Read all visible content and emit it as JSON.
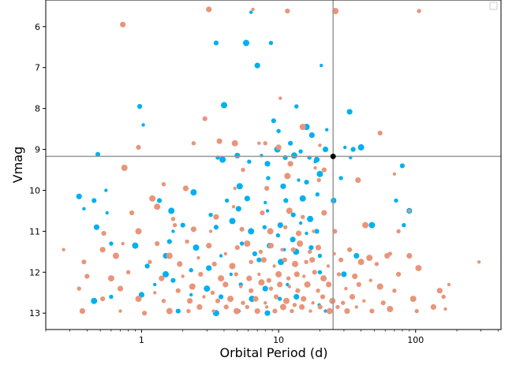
{
  "chart_data": {
    "type": "scatter",
    "xlabel": "Orbital Period (d)",
    "ylabel": "Vmag",
    "x_scale": "log",
    "xlim": [
      0.2,
      420
    ],
    "ylim": [
      13.4,
      5.35
    ],
    "y_inverted": true,
    "x_ticks": [
      1,
      10,
      100
    ],
    "x_tick_labels": [
      "1",
      "10",
      "100"
    ],
    "y_ticks": [
      6,
      7,
      8,
      9,
      10,
      11,
      12,
      13
    ],
    "y_tick_labels": [
      "6",
      "7",
      "8",
      "9",
      "10",
      "11",
      "12",
      "13"
    ],
    "legend": {
      "position": "top-right",
      "entries": []
    },
    "crosshair": {
      "x": 25,
      "y": 9.17
    },
    "highlight_point": {
      "x": 25,
      "y": 9.17,
      "color": "#000000"
    },
    "colors": {
      "salmon": "#e8957a",
      "blue": "#00b0f0",
      "crosshair": "#999999"
    },
    "series": [
      {
        "color": "#00b0f0",
        "points": [
          [
            6.3,
            5.65
          ],
          [
            3.5,
            6.4
          ],
          [
            5.8,
            6.4
          ],
          [
            8.8,
            6.4
          ],
          [
            7.0,
            6.95
          ],
          [
            20.5,
            6.95
          ],
          [
            0.97,
            7.95
          ],
          [
            4.0,
            7.92
          ],
          [
            13.5,
            7.95
          ],
          [
            33,
            8.08
          ],
          [
            1.03,
            8.4
          ],
          [
            9.2,
            8.3
          ],
          [
            16,
            8.45
          ],
          [
            10,
            8.55
          ],
          [
            17.5,
            8.65
          ],
          [
            22.5,
            8.52
          ],
          [
            12.2,
            8.85
          ],
          [
            9.8,
            9.0
          ],
          [
            14.5,
            9.05
          ],
          [
            22,
            9.0
          ],
          [
            30.5,
            8.95
          ],
          [
            35,
            9.0
          ],
          [
            40,
            8.95
          ],
          [
            3.6,
            9.2
          ],
          [
            5.0,
            9.15
          ],
          [
            7.5,
            9.15
          ],
          [
            11.2,
            9.2
          ],
          [
            13,
            9.15
          ],
          [
            16.8,
            9.2
          ],
          [
            19,
            9.25
          ],
          [
            33.5,
            9.2
          ],
          [
            0.48,
            9.12
          ],
          [
            3.9,
            9.25
          ],
          [
            6.1,
            9.3
          ],
          [
            8.3,
            9.35
          ],
          [
            18.5,
            9.3
          ],
          [
            80,
            9.4
          ],
          [
            5.2,
            9.9
          ],
          [
            8.4,
            9.7
          ],
          [
            10.8,
            9.9
          ],
          [
            14,
            9.75
          ],
          [
            16,
            9.8
          ],
          [
            20,
            9.6
          ],
          [
            28.5,
            9.7
          ],
          [
            0.35,
            10.15
          ],
          [
            0.55,
            10.0
          ],
          [
            1.35,
            10.25
          ],
          [
            2.4,
            10.05
          ],
          [
            4.2,
            10.25
          ],
          [
            5.9,
            10.2
          ],
          [
            8.0,
            10.3
          ],
          [
            11.3,
            10.25
          ],
          [
            15,
            10.2
          ],
          [
            19.2,
            10.1
          ],
          [
            25.2,
            10.25
          ],
          [
            0.38,
            10.45
          ],
          [
            0.45,
            10.25
          ],
          [
            1.65,
            10.5
          ],
          [
            3.2,
            10.6
          ],
          [
            5.1,
            10.45
          ],
          [
            8.3,
            10.5
          ],
          [
            12.8,
            10.6
          ],
          [
            17,
            10.7
          ],
          [
            72,
            10.25
          ],
          [
            90,
            10.5
          ],
          [
            0.56,
            10.55
          ],
          [
            2.0,
            10.85
          ],
          [
            4.6,
            10.75
          ],
          [
            7.9,
            10.9
          ],
          [
            10.3,
            10.85
          ],
          [
            14.5,
            10.8
          ],
          [
            19,
            11.0
          ],
          [
            48,
            10.85
          ],
          [
            82,
            10.85
          ],
          [
            0.47,
            10.9
          ],
          [
            1.7,
            11.0
          ],
          [
            3.5,
            10.9
          ],
          [
            6.3,
            11.0
          ],
          [
            9.9,
            11.1
          ],
          [
            12.7,
            11.2
          ],
          [
            16,
            11.05
          ],
          [
            1.6,
            11.25
          ],
          [
            2.5,
            11.4
          ],
          [
            5.4,
            11.3
          ],
          [
            8.6,
            11.35
          ],
          [
            11.0,
            11.45
          ],
          [
            17.3,
            11.4
          ],
          [
            0.9,
            11.35
          ],
          [
            0.6,
            11.3
          ],
          [
            1.5,
            11.6
          ],
          [
            3.8,
            11.6
          ],
          [
            6.7,
            11.55
          ],
          [
            13.4,
            11.5
          ],
          [
            20,
            11.6
          ],
          [
            37,
            11.6
          ],
          [
            0.8,
            12.0
          ],
          [
            1.1,
            11.85
          ],
          [
            1.5,
            12.05
          ],
          [
            2.3,
            11.95
          ],
          [
            3.1,
            11.9
          ],
          [
            4.5,
            12.05
          ],
          [
            7.2,
            11.7
          ],
          [
            10.4,
            11.75
          ],
          [
            20,
            12.0
          ],
          [
            30,
            12.05
          ],
          [
            1.25,
            12.3
          ],
          [
            1.7,
            12.2
          ],
          [
            3.0,
            12.4
          ],
          [
            5.3,
            12.3
          ],
          [
            8.0,
            12.4
          ],
          [
            11.6,
            12.3
          ],
          [
            16.4,
            12.3
          ],
          [
            0.45,
            12.7
          ],
          [
            0.6,
            12.6
          ],
          [
            1.0,
            12.55
          ],
          [
            2.3,
            12.55
          ],
          [
            3.8,
            12.6
          ],
          [
            6.4,
            12.65
          ],
          [
            10.2,
            12.65
          ],
          [
            13.5,
            12.6
          ],
          [
            19.8,
            12.8
          ],
          [
            1.85,
            12.95
          ],
          [
            3.5,
            13.0
          ],
          [
            5.1,
            12.95
          ],
          [
            8.3,
            13.0
          ],
          [
            22,
            12.95
          ]
        ]
      },
      {
        "color": "#e8957a",
        "points": [
          [
            3.1,
            5.58
          ],
          [
            6.5,
            5.58
          ],
          [
            11.6,
            5.62
          ],
          [
            26,
            5.62
          ],
          [
            106,
            5.62
          ],
          [
            0.73,
            5.95
          ],
          [
            10.3,
            7.75
          ],
          [
            2.9,
            8.25
          ],
          [
            15,
            8.45
          ],
          [
            2.4,
            8.85
          ],
          [
            3.7,
            8.8
          ],
          [
            7.2,
            8.85
          ],
          [
            0.95,
            8.95
          ],
          [
            4.8,
            8.85
          ],
          [
            8.0,
            8.85
          ],
          [
            10,
            8.95
          ],
          [
            20,
            8.9
          ],
          [
            55,
            8.6
          ],
          [
            0.75,
            9.45
          ],
          [
            5.5,
            9.5
          ],
          [
            12.2,
            9.35
          ],
          [
            18.5,
            9.45
          ],
          [
            21.5,
            9.5
          ],
          [
            1.2,
            10.2
          ],
          [
            1.45,
            9.85
          ],
          [
            2.1,
            9.95
          ],
          [
            4.8,
            9.95
          ],
          [
            8.2,
            9.95
          ],
          [
            11.6,
            9.65
          ],
          [
            19.7,
            9.75
          ],
          [
            38,
            9.75
          ],
          [
            70,
            9.6
          ],
          [
            0.85,
            10.55
          ],
          [
            1.3,
            10.4
          ],
          [
            1.7,
            10.7
          ],
          [
            3.5,
            10.65
          ],
          [
            4.7,
            10.4
          ],
          [
            7.6,
            10.55
          ],
          [
            12.0,
            10.5
          ],
          [
            15,
            10.65
          ],
          [
            21.5,
            10.55
          ],
          [
            90,
            10.5
          ],
          [
            0.53,
            11.05
          ],
          [
            0.95,
            11.0
          ],
          [
            1.75,
            10.85
          ],
          [
            2.4,
            10.95
          ],
          [
            3.2,
            11.0
          ],
          [
            5.4,
            10.95
          ],
          [
            8.7,
            11.0
          ],
          [
            11.2,
            10.9
          ],
          [
            14,
            11.05
          ],
          [
            18,
            11.0
          ],
          [
            25.7,
            11.0
          ],
          [
            43,
            10.85
          ],
          [
            75,
            11.0
          ],
          [
            0.52,
            11.45
          ],
          [
            0.73,
            11.3
          ],
          [
            1.3,
            11.3
          ],
          [
            1.6,
            11.6
          ],
          [
            2.15,
            11.25
          ],
          [
            3.1,
            11.35
          ],
          [
            4.1,
            11.55
          ],
          [
            5.0,
            11.4
          ],
          [
            5.9,
            11.3
          ],
          [
            7.4,
            11.5
          ],
          [
            8.8,
            11.35
          ],
          [
            10.6,
            11.45
          ],
          [
            12.8,
            11.45
          ],
          [
            14.3,
            11.3
          ],
          [
            16.9,
            11.5
          ],
          [
            19.5,
            11.4
          ],
          [
            25.5,
            11.55
          ],
          [
            33,
            11.45
          ],
          [
            46,
            11.65
          ],
          [
            65,
            11.55
          ],
          [
            90,
            11.6
          ],
          [
            0.27,
            11.45
          ],
          [
            0.38,
            11.75
          ],
          [
            0.65,
            11.6
          ],
          [
            1.15,
            11.75
          ],
          [
            1.9,
            11.8
          ],
          [
            2.6,
            11.65
          ],
          [
            3.4,
            11.8
          ],
          [
            4.6,
            11.85
          ],
          [
            6.3,
            11.75
          ],
          [
            7.8,
            11.7
          ],
          [
            9.3,
            11.85
          ],
          [
            11.1,
            11.7
          ],
          [
            13.2,
            11.8
          ],
          [
            15.9,
            11.75
          ],
          [
            17.6,
            11.7
          ],
          [
            23,
            11.85
          ],
          [
            28.5,
            11.7
          ],
          [
            40,
            11.75
          ],
          [
            52,
            11.8
          ],
          [
            62,
            11.6
          ],
          [
            290,
            11.75
          ],
          [
            0.4,
            12.1
          ],
          [
            0.6,
            12.15
          ],
          [
            0.8,
            12.0
          ],
          [
            1.4,
            12.15
          ],
          [
            2.0,
            12.1
          ],
          [
            2.7,
            12.05
          ],
          [
            3.8,
            12.15
          ],
          [
            4.9,
            12.05
          ],
          [
            6.1,
            12.15
          ],
          [
            7.2,
            12.05
          ],
          [
            8.5,
            12.2
          ],
          [
            10.0,
            12.05
          ],
          [
            11.8,
            12.15
          ],
          [
            13.6,
            12.05
          ],
          [
            15.3,
            12.1
          ],
          [
            18.3,
            12.0
          ],
          [
            21.3,
            12.15
          ],
          [
            27.5,
            12.05
          ],
          [
            36,
            12.1
          ],
          [
            47,
            12.2
          ],
          [
            75,
            12.05
          ],
          [
            105,
            11.9
          ],
          [
            0.35,
            12.4
          ],
          [
            0.7,
            12.4
          ],
          [
            1.25,
            12.5
          ],
          [
            1.85,
            12.45
          ],
          [
            2.35,
            12.35
          ],
          [
            3.3,
            12.5
          ],
          [
            4.1,
            12.3
          ],
          [
            5.3,
            12.35
          ],
          [
            6.3,
            12.45
          ],
          [
            7.5,
            12.25
          ],
          [
            8.8,
            12.4
          ],
          [
            10.2,
            12.3
          ],
          [
            12.0,
            12.35
          ],
          [
            13.8,
            12.45
          ],
          [
            16.2,
            12.3
          ],
          [
            19.4,
            12.45
          ],
          [
            23.2,
            12.3
          ],
          [
            31,
            12.4
          ],
          [
            38.5,
            12.3
          ],
          [
            55,
            12.35
          ],
          [
            70,
            12.45
          ],
          [
            150,
            12.45
          ],
          [
            175,
            12.3
          ],
          [
            0.52,
            12.65
          ],
          [
            0.95,
            12.65
          ],
          [
            1.45,
            12.7
          ],
          [
            2.25,
            12.7
          ],
          [
            2.85,
            12.6
          ],
          [
            3.6,
            12.7
          ],
          [
            4.45,
            12.65
          ],
          [
            5.5,
            12.75
          ],
          [
            6.8,
            12.65
          ],
          [
            8.0,
            12.75
          ],
          [
            9.6,
            12.6
          ],
          [
            11.4,
            12.7
          ],
          [
            13.1,
            12.8
          ],
          [
            15.2,
            12.65
          ],
          [
            17.8,
            12.75
          ],
          [
            21.0,
            12.6
          ],
          [
            24.7,
            12.7
          ],
          [
            29.5,
            12.75
          ],
          [
            34.5,
            12.6
          ],
          [
            42,
            12.7
          ],
          [
            58,
            12.75
          ],
          [
            96,
            12.65
          ],
          [
            160,
            12.6
          ],
          [
            0.37,
            12.95
          ],
          [
            0.7,
            12.95
          ],
          [
            1.05,
            13.0
          ],
          [
            1.6,
            12.95
          ],
          [
            2.2,
            12.95
          ],
          [
            2.65,
            12.85
          ],
          [
            3.35,
            12.95
          ],
          [
            4.15,
            12.85
          ],
          [
            4.95,
            12.95
          ],
          [
            5.9,
            12.85
          ],
          [
            7.0,
            12.95
          ],
          [
            8.2,
            12.85
          ],
          [
            9.4,
            12.95
          ],
          [
            10.8,
            12.85
          ],
          [
            12.5,
            12.95
          ],
          [
            14.8,
            12.85
          ],
          [
            17.1,
            12.95
          ],
          [
            20.1,
            12.85
          ],
          [
            23.6,
            12.95
          ],
          [
            27,
            12.85
          ],
          [
            31.6,
            12.95
          ],
          [
            37,
            12.85
          ],
          [
            48,
            12.95
          ],
          [
            65,
            12.9
          ],
          [
            102,
            12.95
          ],
          [
            135,
            12.85
          ],
          [
            165,
            12.9
          ]
        ]
      }
    ]
  }
}
